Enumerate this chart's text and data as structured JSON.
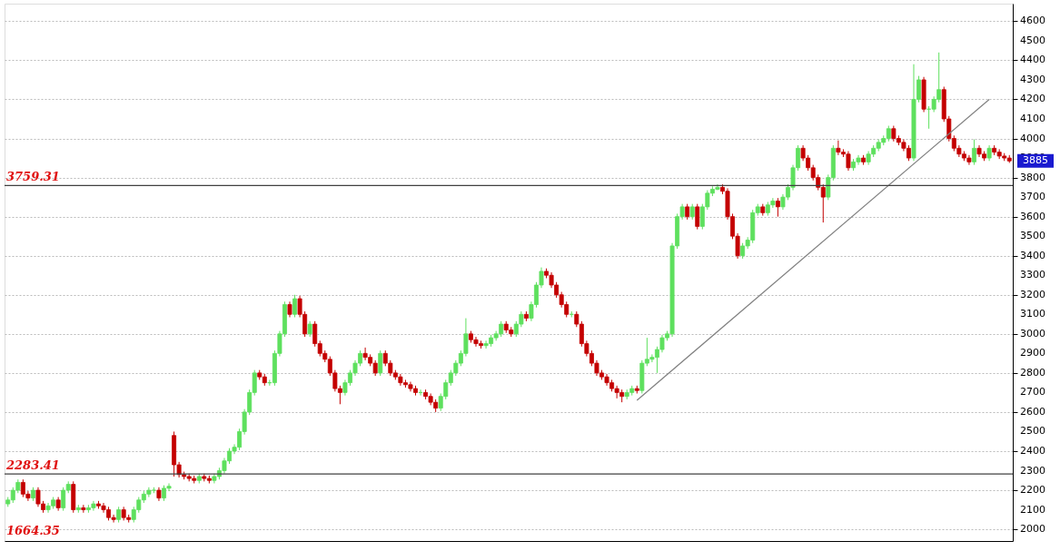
{
  "chart_data": {
    "type": "candlestick",
    "categories": [
      null,
      null,
      null,
      null,
      null,
      null,
      null,
      null,
      null,
      null,
      null,
      null,
      null,
      null,
      null,
      null,
      null,
      null,
      null,
      null,
      null,
      null,
      null,
      null,
      null,
      null,
      null,
      null,
      null,
      null,
      null,
      null,
      null,
      null,
      null,
      null,
      null,
      null,
      null,
      null,
      null,
      null,
      null,
      null,
      null,
      null,
      null,
      null,
      null,
      null,
      null,
      null,
      null,
      null,
      null,
      null,
      null,
      null,
      null,
      null,
      null,
      null,
      null,
      null,
      null,
      null,
      null,
      null,
      null,
      null,
      null,
      null,
      null,
      null,
      null,
      null,
      null,
      null,
      null,
      null,
      null,
      null,
      null,
      null,
      null,
      null,
      null,
      null,
      null,
      null,
      null,
      null,
      null,
      null,
      null,
      null,
      null,
      null,
      null,
      null,
      null,
      null,
      null,
      null,
      null,
      null,
      null,
      null,
      null,
      null,
      null,
      null,
      null,
      null,
      null,
      null,
      null,
      null,
      null,
      null,
      null,
      null,
      null,
      null,
      null,
      null,
      null,
      null,
      null,
      null,
      null,
      null,
      null,
      null,
      null,
      null,
      null,
      null,
      null,
      null,
      null,
      null,
      null,
      null,
      null,
      null,
      null,
      null,
      null,
      null,
      null,
      null,
      null,
      null,
      null,
      null,
      null,
      null,
      null,
      null,
      null,
      null,
      null,
      null,
      null,
      null,
      null,
      null,
      null,
      null,
      null,
      null,
      null,
      null,
      null,
      null,
      null,
      null,
      null,
      null,
      null,
      null,
      null,
      null,
      null,
      null,
      null,
      null,
      null,
      null,
      null,
      null,
      null,
      null,
      null,
      null,
      null,
      null,
      null,
      null
    ],
    "ohlc": [
      [
        2130,
        2165,
        2115,
        2150
      ],
      [
        2150,
        2215,
        2135,
        2200
      ],
      [
        2200,
        2255,
        2185,
        2240
      ],
      [
        2240,
        2255,
        2165,
        2180
      ],
      [
        2180,
        2195,
        2145,
        2160
      ],
      [
        2160,
        2215,
        2145,
        2200
      ],
      [
        2200,
        2215,
        2115,
        2130
      ],
      [
        2130,
        2145,
        2085,
        2100
      ],
      [
        2100,
        2135,
        2085,
        2120
      ],
      [
        2120,
        2165,
        2105,
        2150
      ],
      [
        2150,
        2165,
        2095,
        2110
      ],
      [
        2110,
        2215,
        2095,
        2200
      ],
      [
        2200,
        2245,
        2185,
        2230
      ],
      [
        2230,
        2245,
        2085,
        2100
      ],
      [
        2100,
        2125,
        2085,
        2110
      ],
      [
        2110,
        2125,
        2085,
        2100
      ],
      [
        2100,
        2125,
        2085,
        2110
      ],
      [
        2110,
        2145,
        2095,
        2130
      ],
      [
        2130,
        2145,
        2105,
        2120
      ],
      [
        2120,
        2135,
        2085,
        2100
      ],
      [
        2100,
        2115,
        2045,
        2060
      ],
      [
        2060,
        2075,
        2035,
        2050
      ],
      [
        2050,
        2115,
        2035,
        2100
      ],
      [
        2100,
        2115,
        2045,
        2060
      ],
      [
        2060,
        2075,
        2035,
        2050
      ],
      [
        2050,
        2115,
        2035,
        2100
      ],
      [
        2100,
        2165,
        2085,
        2150
      ],
      [
        2150,
        2195,
        2135,
        2180
      ],
      [
        2180,
        2215,
        2165,
        2200
      ],
      [
        2200,
        2215,
        2185,
        2200
      ],
      [
        2200,
        2215,
        2145,
        2160
      ],
      [
        2160,
        2225,
        2145,
        2210
      ],
      [
        2210,
        2235,
        2195,
        2220
      ],
      [
        2480,
        2500,
        2270,
        2330
      ],
      [
        2330,
        2345,
        2265,
        2280
      ],
      [
        2280,
        2295,
        2255,
        2270
      ],
      [
        2270,
        2285,
        2245,
        2260
      ],
      [
        2260,
        2275,
        2235,
        2250
      ],
      [
        2250,
        2285,
        2235,
        2270
      ],
      [
        2270,
        2285,
        2245,
        2260
      ],
      [
        2260,
        2275,
        2235,
        2250
      ],
      [
        2250,
        2285,
        2235,
        2270
      ],
      [
        2270,
        2315,
        2255,
        2300
      ],
      [
        2300,
        2365,
        2285,
        2350
      ],
      [
        2350,
        2415,
        2335,
        2400
      ],
      [
        2400,
        2435,
        2385,
        2420
      ],
      [
        2420,
        2515,
        2405,
        2500
      ],
      [
        2500,
        2615,
        2485,
        2600
      ],
      [
        2600,
        2715,
        2585,
        2700
      ],
      [
        2700,
        2815,
        2685,
        2800
      ],
      [
        2800,
        2815,
        2765,
        2780
      ],
      [
        2780,
        2795,
        2735,
        2750
      ],
      [
        2750,
        2765,
        2735,
        2750
      ],
      [
        2750,
        2915,
        2735,
        2900
      ],
      [
        2900,
        3015,
        2885,
        3000
      ],
      [
        3000,
        3165,
        2985,
        3150
      ],
      [
        3150,
        3165,
        3085,
        3100
      ],
      [
        3100,
        3200,
        3085,
        3180
      ],
      [
        3180,
        3195,
        3085,
        3100
      ],
      [
        3100,
        3115,
        2985,
        3000
      ],
      [
        3000,
        3065,
        2985,
        3050
      ],
      [
        3050,
        3065,
        2935,
        2950
      ],
      [
        2950,
        2965,
        2885,
        2900
      ],
      [
        2900,
        2915,
        2855,
        2870
      ],
      [
        2870,
        2885,
        2785,
        2800
      ],
      [
        2800,
        2815,
        2705,
        2720
      ],
      [
        2720,
        2735,
        2640,
        2700
      ],
      [
        2700,
        2765,
        2685,
        2750
      ],
      [
        2750,
        2815,
        2735,
        2800
      ],
      [
        2800,
        2865,
        2785,
        2850
      ],
      [
        2850,
        2915,
        2835,
        2900
      ],
      [
        2900,
        2930,
        2865,
        2880
      ],
      [
        2880,
        2895,
        2835,
        2850
      ],
      [
        2850,
        2865,
        2785,
        2800
      ],
      [
        2800,
        2915,
        2785,
        2900
      ],
      [
        2900,
        2915,
        2835,
        2850
      ],
      [
        2850,
        2865,
        2785,
        2800
      ],
      [
        2800,
        2815,
        2765,
        2780
      ],
      [
        2780,
        2795,
        2735,
        2750
      ],
      [
        2750,
        2765,
        2725,
        2740
      ],
      [
        2740,
        2755,
        2705,
        2720
      ],
      [
        2720,
        2735,
        2685,
        2700
      ],
      [
        2700,
        2715,
        2685,
        2700
      ],
      [
        2700,
        2715,
        2665,
        2680
      ],
      [
        2680,
        2695,
        2635,
        2650
      ],
      [
        2650,
        2665,
        2600,
        2620
      ],
      [
        2620,
        2695,
        2605,
        2680
      ],
      [
        2680,
        2765,
        2665,
        2750
      ],
      [
        2750,
        2815,
        2735,
        2800
      ],
      [
        2800,
        2865,
        2785,
        2850
      ],
      [
        2850,
        2915,
        2835,
        2900
      ],
      [
        2900,
        3080,
        2885,
        3000
      ],
      [
        3000,
        3015,
        2955,
        2970
      ],
      [
        2970,
        2985,
        2935,
        2950
      ],
      [
        2950,
        2965,
        2925,
        2940
      ],
      [
        2940,
        2965,
        2925,
        2950
      ],
      [
        2950,
        2995,
        2935,
        2980
      ],
      [
        2980,
        3015,
        2965,
        3000
      ],
      [
        3000,
        3065,
        2985,
        3050
      ],
      [
        3050,
        3065,
        3005,
        3020
      ],
      [
        3020,
        3035,
        2985,
        3000
      ],
      [
        3000,
        3065,
        2985,
        3050
      ],
      [
        3050,
        3115,
        3035,
        3100
      ],
      [
        3100,
        3115,
        3065,
        3080
      ],
      [
        3080,
        3165,
        3065,
        3150
      ],
      [
        3150,
        3265,
        3135,
        3250
      ],
      [
        3250,
        3340,
        3235,
        3320
      ],
      [
        3320,
        3335,
        3285,
        3300
      ],
      [
        3300,
        3315,
        3235,
        3250
      ],
      [
        3250,
        3265,
        3185,
        3200
      ],
      [
        3200,
        3215,
        3135,
        3150
      ],
      [
        3150,
        3165,
        3085,
        3100
      ],
      [
        3100,
        3115,
        3085,
        3100
      ],
      [
        3100,
        3115,
        3035,
        3050
      ],
      [
        3050,
        3065,
        2935,
        2950
      ],
      [
        2950,
        2965,
        2885,
        2900
      ],
      [
        2900,
        2915,
        2835,
        2850
      ],
      [
        2850,
        2865,
        2785,
        2800
      ],
      [
        2800,
        2815,
        2765,
        2780
      ],
      [
        2780,
        2795,
        2735,
        2750
      ],
      [
        2750,
        2765,
        2705,
        2720
      ],
      [
        2720,
        2735,
        2670,
        2700
      ],
      [
        2700,
        2715,
        2650,
        2680
      ],
      [
        2680,
        2715,
        2665,
        2700
      ],
      [
        2700,
        2735,
        2685,
        2720
      ],
      [
        2720,
        2735,
        2695,
        2710
      ],
      [
        2710,
        2865,
        2695,
        2850
      ],
      [
        2850,
        2980,
        2835,
        2870
      ],
      [
        2870,
        2895,
        2855,
        2880
      ],
      [
        2880,
        2935,
        2800,
        2920
      ],
      [
        2920,
        2995,
        2905,
        2980
      ],
      [
        2980,
        3015,
        2965,
        3000
      ],
      [
        3000,
        3465,
        2985,
        3450
      ],
      [
        3450,
        3615,
        3435,
        3600
      ],
      [
        3600,
        3665,
        3585,
        3650
      ],
      [
        3650,
        3665,
        3585,
        3600
      ],
      [
        3600,
        3665,
        3585,
        3650
      ],
      [
        3650,
        3665,
        3535,
        3550
      ],
      [
        3550,
        3665,
        3535,
        3650
      ],
      [
        3650,
        3735,
        3635,
        3720
      ],
      [
        3720,
        3755,
        3705,
        3740
      ],
      [
        3740,
        3765,
        3735,
        3750
      ],
      [
        3750,
        3765,
        3715,
        3730
      ],
      [
        3730,
        3745,
        3585,
        3600
      ],
      [
        3600,
        3615,
        3485,
        3500
      ],
      [
        3500,
        3515,
        3385,
        3400
      ],
      [
        3400,
        3465,
        3385,
        3450
      ],
      [
        3450,
        3495,
        3435,
        3480
      ],
      [
        3480,
        3635,
        3465,
        3620
      ],
      [
        3620,
        3665,
        3605,
        3650
      ],
      [
        3650,
        3665,
        3605,
        3620
      ],
      [
        3620,
        3675,
        3605,
        3660
      ],
      [
        3660,
        3695,
        3645,
        3680
      ],
      [
        3680,
        3695,
        3600,
        3650
      ],
      [
        3650,
        3715,
        3635,
        3700
      ],
      [
        3700,
        3765,
        3685,
        3750
      ],
      [
        3750,
        3865,
        3735,
        3850
      ],
      [
        3850,
        3965,
        3835,
        3950
      ],
      [
        3950,
        3965,
        3885,
        3900
      ],
      [
        3900,
        3915,
        3835,
        3850
      ],
      [
        3850,
        3865,
        3785,
        3800
      ],
      [
        3800,
        3815,
        3735,
        3750
      ],
      [
        3750,
        3765,
        3570,
        3700
      ],
      [
        3700,
        3815,
        3685,
        3800
      ],
      [
        3800,
        3965,
        3785,
        3950
      ],
      [
        3950,
        3990,
        3915,
        3930
      ],
      [
        3930,
        3945,
        3905,
        3920
      ],
      [
        3920,
        3935,
        3835,
        3850
      ],
      [
        3850,
        3895,
        3835,
        3880
      ],
      [
        3880,
        3915,
        3865,
        3900
      ],
      [
        3900,
        3915,
        3865,
        3880
      ],
      [
        3880,
        3935,
        3865,
        3920
      ],
      [
        3920,
        3965,
        3905,
        3950
      ],
      [
        3950,
        3995,
        3935,
        3980
      ],
      [
        3980,
        4015,
        3965,
        4000
      ],
      [
        4000,
        4065,
        3985,
        4050
      ],
      [
        4050,
        4065,
        3985,
        4000
      ],
      [
        4000,
        4015,
        3965,
        3980
      ],
      [
        3980,
        3995,
        3935,
        3950
      ],
      [
        3950,
        3965,
        3885,
        3900
      ],
      [
        3900,
        4380,
        3885,
        4200
      ],
      [
        4200,
        4320,
        4185,
        4300
      ],
      [
        4300,
        4315,
        4135,
        4150
      ],
      [
        4150,
        4165,
        4050,
        4150
      ],
      [
        4150,
        4215,
        4135,
        4200
      ],
      [
        4200,
        4440,
        4185,
        4250
      ],
      [
        4250,
        4265,
        4085,
        4100
      ],
      [
        4100,
        4115,
        3985,
        4000
      ],
      [
        4000,
        4015,
        3935,
        3950
      ],
      [
        3950,
        3965,
        3905,
        3920
      ],
      [
        3920,
        3935,
        3885,
        3900
      ],
      [
        3900,
        3915,
        3865,
        3880
      ],
      [
        3880,
        3995,
        3865,
        3950
      ],
      [
        3950,
        3965,
        3905,
        3920
      ],
      [
        3920,
        3935,
        3885,
        3900
      ],
      [
        3900,
        3965,
        3885,
        3950
      ],
      [
        3950,
        3965,
        3915,
        3930
      ],
      [
        3930,
        3945,
        3895,
        3910
      ],
      [
        3910,
        3925,
        3885,
        3900
      ],
      [
        3900,
        3915,
        3875,
        3885
      ]
    ],
    "colors": [
      "#5ee05e",
      "#5ee05e",
      "#5ee05e",
      "#c40000",
      "#c40000",
      "#5ee05e",
      "#c40000",
      "#c40000",
      "#5ee05e",
      "#5ee05e",
      "#c40000",
      "#5ee05e",
      "#5ee05e",
      "#c40000",
      "#5ee05e",
      "#c40000",
      "#5ee05e",
      "#5ee05e",
      "#c40000",
      "#c40000",
      "#c40000",
      "#c40000",
      "#5ee05e",
      "#c40000",
      "#c40000",
      "#5ee05e",
      "#5ee05e",
      "#5ee05e",
      "#5ee05e",
      "#5ee05e",
      "#c40000",
      "#5ee05e",
      "#5ee05e",
      "#c40000",
      "#c40000",
      "#c40000",
      "#c40000",
      "#c40000",
      "#5ee05e",
      "#c40000",
      "#c40000",
      "#5ee05e",
      "#5ee05e",
      "#5ee05e",
      "#5ee05e",
      "#5ee05e",
      "#5ee05e",
      "#5ee05e",
      "#5ee05e",
      "#5ee05e",
      "#c40000",
      "#c40000",
      "#5ee05e",
      "#5ee05e",
      "#5ee05e",
      "#5ee05e",
      "#c40000",
      "#5ee05e",
      "#c40000",
      "#c40000",
      "#5ee05e",
      "#c40000",
      "#c40000",
      "#c40000",
      "#c40000",
      "#c40000",
      "#c40000",
      "#5ee05e",
      "#5ee05e",
      "#5ee05e",
      "#5ee05e",
      "#c40000",
      "#c40000",
      "#c40000",
      "#5ee05e",
      "#c40000",
      "#c40000",
      "#c40000",
      "#c40000",
      "#c40000",
      "#c40000",
      "#c40000",
      "#5ee05e",
      "#c40000",
      "#c40000",
      "#c40000",
      "#5ee05e",
      "#5ee05e",
      "#5ee05e",
      "#5ee05e",
      "#5ee05e",
      "#5ee05e",
      "#c40000",
      "#c40000",
      "#c40000",
      "#5ee05e",
      "#5ee05e",
      "#5ee05e",
      "#5ee05e",
      "#c40000",
      "#c40000",
      "#5ee05e",
      "#5ee05e",
      "#c40000",
      "#5ee05e",
      "#5ee05e",
      "#5ee05e",
      "#c40000",
      "#c40000",
      "#c40000",
      "#c40000",
      "#c40000",
      "#5ee05e",
      "#c40000",
      "#c40000",
      "#c40000",
      "#c40000",
      "#c40000",
      "#c40000",
      "#c40000",
      "#c40000",
      "#c40000",
      "#c40000",
      "#5ee05e",
      "#5ee05e",
      "#c40000",
      "#5ee05e",
      "#5ee05e",
      "#5ee05e",
      "#5ee05e",
      "#5ee05e",
      "#5ee05e",
      "#5ee05e",
      "#5ee05e",
      "#5ee05e",
      "#c40000",
      "#5ee05e",
      "#c40000",
      "#5ee05e",
      "#5ee05e",
      "#5ee05e",
      "#5ee05e",
      "#c40000",
      "#c40000",
      "#c40000",
      "#c40000",
      "#5ee05e",
      "#5ee05e",
      "#5ee05e",
      "#5ee05e",
      "#c40000",
      "#5ee05e",
      "#5ee05e",
      "#c40000",
      "#5ee05e",
      "#5ee05e",
      "#5ee05e",
      "#5ee05e",
      "#c40000",
      "#c40000",
      "#c40000",
      "#c40000",
      "#c40000",
      "#5ee05e",
      "#5ee05e",
      "#c40000",
      "#c40000",
      "#c40000",
      "#5ee05e",
      "#5ee05e",
      "#c40000",
      "#5ee05e",
      "#5ee05e",
      "#5ee05e",
      "#5ee05e",
      "#5ee05e",
      "#c40000",
      "#c40000",
      "#c40000",
      "#c40000",
      "#5ee05e",
      "#5ee05e",
      "#c40000",
      "#5ee05e",
      "#5ee05e",
      "#5ee05e",
      "#c40000",
      "#c40000",
      "#c40000",
      "#c40000",
      "#c40000",
      "#c40000",
      "#5ee05e",
      "#c40000",
      "#c40000",
      "#5ee05e",
      "#c40000",
      "#c40000",
      "#c40000",
      "#c40000"
    ],
    "series": [
      {
        "type": "line",
        "color": "#808080",
        "values": [
          null,
          null,
          null,
          null,
          null,
          null,
          null,
          null,
          null,
          null,
          null,
          null,
          null,
          null,
          null,
          null,
          null,
          null,
          null,
          null,
          null,
          null,
          null,
          null,
          null,
          null,
          null,
          null,
          null,
          null,
          null,
          null,
          null,
          null,
          null,
          null,
          null,
          null,
          null,
          null,
          null,
          null,
          null,
          null,
          null,
          null,
          null,
          null,
          null,
          null,
          null,
          null,
          null,
          null,
          null,
          null,
          null,
          null,
          null,
          null,
          null,
          null,
          null,
          null,
          null,
          null,
          null,
          null,
          null,
          null,
          null,
          null,
          null,
          null,
          null,
          null,
          null,
          null,
          null,
          null,
          null,
          null,
          null,
          null,
          null,
          null,
          null,
          null,
          null,
          null,
          null,
          null,
          null,
          null,
          null,
          null,
          null,
          null,
          null,
          null,
          null,
          null,
          null,
          null,
          null,
          null,
          null,
          null,
          null,
          null,
          null,
          null,
          null,
          null,
          null,
          null,
          null,
          null,
          null,
          null,
          null,
          null,
          null,
          null,
          null,
          2660,
          null,
          null,
          null,
          null,
          null,
          null,
          null,
          null,
          null,
          null,
          null,
          null,
          null,
          null,
          null,
          null,
          null,
          null,
          null,
          null,
          null,
          null,
          null,
          null,
          null,
          null,
          null,
          null,
          null,
          null,
          null,
          null,
          null,
          null,
          null,
          null,
          null,
          null,
          null,
          null,
          null,
          null,
          null,
          null,
          null,
          null,
          null,
          null,
          null,
          null,
          null,
          null,
          null,
          null,
          null,
          null,
          null,
          null,
          null,
          null,
          null,
          null,
          null,
          null,
          null,
          null,
          null,
          null,
          null,
          4200,
          null,
          null,
          null,
          null
        ]
      }
    ],
    "ylim": [
      1940,
      4690
    ],
    "yticks": [
      2000,
      2100,
      2200,
      2300,
      2400,
      2500,
      2600,
      2700,
      2800,
      2900,
      3000,
      3100,
      3200,
      3300,
      3400,
      3500,
      3600,
      3700,
      3800,
      3900,
      4000,
      4100,
      4200,
      4300,
      4400,
      4500,
      4600
    ],
    "ref_lines": [
      {
        "axis": "y",
        "value": 3759.31,
        "label": "3759.31",
        "color": "#404040"
      },
      {
        "axis": "y",
        "value": 2283.41,
        "label": "2283.41",
        "color": "#404040"
      }
    ],
    "annotations": [
      "1664.35",
      "3885"
    ],
    "grid": "y",
    "tick_labels": "y"
  }
}
